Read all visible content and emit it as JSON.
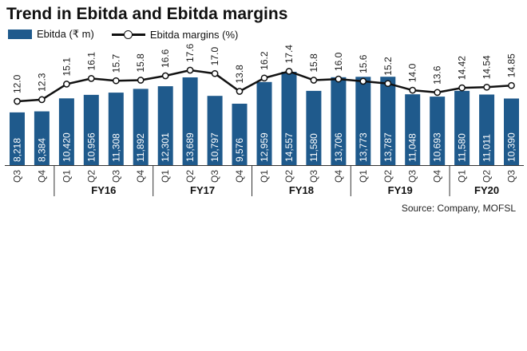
{
  "title": "Trend in Ebitda and Ebitda margins",
  "source": "Source: Company, MOFSL",
  "colors": {
    "bar": "#1f5a8c",
    "line": "#111111",
    "marker_fill": "#ffffff",
    "bar_label": "#ffffff",
    "margin_label": "#1a1a1a",
    "axis": "#333333"
  },
  "chart_data": {
    "type": "bar",
    "secondary_type": "line",
    "title": "Trend in Ebitda and Ebitda margins",
    "categories": [
      "Q3",
      "Q4",
      "Q1",
      "Q2",
      "Q3",
      "Q4",
      "Q1",
      "Q2",
      "Q3",
      "Q4",
      "Q1",
      "Q2",
      "Q3",
      "Q4",
      "Q1",
      "Q2",
      "Q3",
      "Q4",
      "Q1",
      "Q2",
      "Q3"
    ],
    "groups": [
      {
        "label": "",
        "start": 0,
        "end": 1
      },
      {
        "label": "FY16",
        "start": 2,
        "end": 5
      },
      {
        "label": "FY17",
        "start": 6,
        "end": 9
      },
      {
        "label": "FY18",
        "start": 10,
        "end": 13
      },
      {
        "label": "FY19",
        "start": 14,
        "end": 17
      },
      {
        "label": "FY20",
        "start": 18,
        "end": 20
      }
    ],
    "series": [
      {
        "name": "Ebitda (₹ m)",
        "type": "bar",
        "values": [
          8218,
          8384,
          10420,
          10956,
          11308,
          11892,
          12301,
          13689,
          10797,
          9576,
          12959,
          14557,
          11580,
          13706,
          13773,
          13787,
          11048,
          10693,
          11580,
          11011,
          10390
        ],
        "labels": [
          "8,218",
          "8,384",
          "10,420",
          "10,956",
          "11,308",
          "11,892",
          "12,301",
          "13,689",
          "10,797",
          "9,576",
          "12,959",
          "14,557",
          "11,580",
          "13,706",
          "13,773",
          "13,787",
          "11,048",
          "10,693",
          "11,580",
          "11,011",
          "10,390"
        ]
      },
      {
        "name": "Ebitda margins (%)",
        "type": "line",
        "values": [
          12.0,
          12.3,
          15.1,
          16.1,
          15.7,
          15.8,
          16.6,
          17.6,
          17.0,
          13.8,
          16.2,
          17.4,
          15.8,
          16.0,
          15.6,
          15.2,
          14.0,
          13.6,
          14.42,
          14.54,
          14.85
        ],
        "labels": [
          "12.0",
          "12.3",
          "15.1",
          "16.1",
          "15.7",
          "15.8",
          "16.6",
          "17.6",
          "17.0",
          "13.8",
          "16.2",
          "17.4",
          "15.8",
          "16.0",
          "15.6",
          "15.2",
          "14.0",
          "13.6",
          "14.42",
          "14.54",
          "14.85"
        ]
      }
    ],
    "legend_position": "top-left",
    "grid": false
  }
}
